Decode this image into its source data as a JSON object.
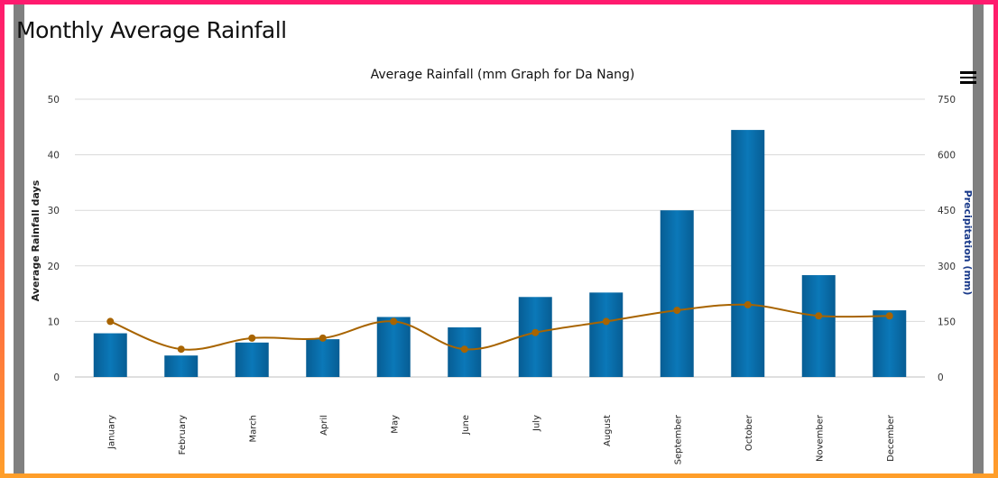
{
  "page": {
    "title": "Monthly Average Rainfall"
  },
  "colors": {
    "bar": "#0a6aa5",
    "line": "#a86400",
    "grid": "#d9d9d9",
    "right_axis_title": "#1a3a8a"
  },
  "icons": {
    "menu": "hamburger-menu-icon"
  },
  "chart_data": {
    "type": "bar",
    "title": "Average Rainfall (mm Graph for Da Nang)",
    "categories": [
      "January",
      "February",
      "March",
      "April",
      "May",
      "June",
      "July",
      "August",
      "September",
      "October",
      "November",
      "December"
    ],
    "series": [
      {
        "name": "Precipitation (mm)",
        "type": "bar",
        "axis": "right",
        "values": [
          118,
          58,
          93,
          102,
          162,
          134,
          216,
          228,
          450,
          667,
          275,
          180
        ]
      },
      {
        "name": "Average Rainfall days",
        "type": "line",
        "axis": "left",
        "values": [
          10,
          5,
          7,
          7,
          10,
          5,
          8,
          10,
          12,
          13,
          11,
          11
        ]
      }
    ],
    "left_axis": {
      "label": "Average Rainfall days",
      "min": 0,
      "max": 50,
      "ticks": [
        0,
        10,
        20,
        30,
        40,
        50
      ]
    },
    "right_axis": {
      "label": "Precipitation (mm)",
      "min": 0,
      "max": 750,
      "ticks": [
        0,
        150,
        300,
        450,
        600,
        750
      ]
    },
    "grid": true
  }
}
